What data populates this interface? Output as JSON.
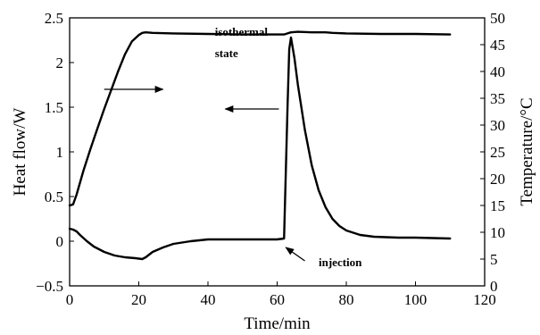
{
  "chart_data": {
    "type": "line",
    "title": "",
    "xlabel": "Time/min",
    "ylabel": "Heat flow/W",
    "y2label": "Temperature/°C",
    "xlim": [
      0,
      120
    ],
    "ylim": [
      -0.5,
      2.5
    ],
    "y2lim": [
      0,
      50
    ],
    "x_ticks": [
      0,
      20,
      40,
      60,
      80,
      100,
      120
    ],
    "y_ticks": [
      -0.5,
      0,
      0.5,
      1,
      1.5,
      2,
      2.5
    ],
    "y_tick_labels": [
      "−0.5",
      "0",
      "0.5",
      "1",
      "1.5",
      "2",
      "2.5"
    ],
    "y2_ticks": [
      0,
      5,
      10,
      15,
      20,
      25,
      30,
      35,
      40,
      45,
      50
    ],
    "grid": false,
    "legend": "none",
    "series": [
      {
        "axis": "right",
        "color": "#000000",
        "x": [
          0,
          1,
          2,
          4,
          6,
          8,
          10,
          12,
          14,
          16,
          18,
          20,
          21,
          22,
          24,
          30,
          40,
          50,
          60,
          62,
          63,
          64,
          66,
          70,
          74,
          76,
          80,
          90,
          100,
          110
        ],
        "y": [
          15,
          15.2,
          17,
          21.5,
          25.5,
          29.3,
          33,
          36.5,
          40,
          43.2,
          45.6,
          46.8,
          47.2,
          47.3,
          47.2,
          47.1,
          47,
          46.9,
          46.9,
          46.9,
          47.1,
          47.3,
          47.4,
          47.3,
          47.3,
          47.2,
          47.1,
          47,
          47,
          46.9
        ]
      },
      {
        "axis": "left",
        "color": "#000000",
        "x": [
          0,
          1,
          2,
          3,
          5,
          7,
          10,
          13,
          16,
          19,
          21,
          22,
          24,
          27,
          30,
          35,
          40,
          50,
          60,
          62,
          63,
          63.5,
          64,
          65,
          66,
          68,
          70,
          72,
          74,
          76,
          78,
          80,
          84,
          88,
          95,
          100,
          110
        ],
        "y": [
          0.14,
          0.13,
          0.11,
          0.07,
          0,
          -0.06,
          -0.12,
          -0.16,
          -0.18,
          -0.19,
          -0.2,
          -0.18,
          -0.12,
          -0.07,
          -0.03,
          0,
          0.02,
          0.02,
          0.02,
          0.03,
          1.5,
          2.15,
          2.28,
          2.05,
          1.75,
          1.25,
          0.85,
          0.57,
          0.38,
          0.25,
          0.17,
          0.12,
          0.07,
          0.05,
          0.04,
          0.04,
          0.03
        ]
      }
    ],
    "annotations": [
      {
        "text": "isothermal",
        "x": 42,
        "y": 2.3
      },
      {
        "text": "state",
        "x": 42,
        "y": 2.06
      },
      {
        "text": "injection",
        "x": 72,
        "y": -0.28
      }
    ],
    "arrows": [
      {
        "from": [
          10,
          1.7
        ],
        "to": [
          27,
          1.7
        ]
      },
      {
        "from": [
          60.5,
          1.48
        ],
        "to": [
          45,
          1.48
        ]
      },
      {
        "from": [
          68,
          -0.22
        ],
        "to": [
          62.5,
          -0.07
        ]
      }
    ]
  }
}
